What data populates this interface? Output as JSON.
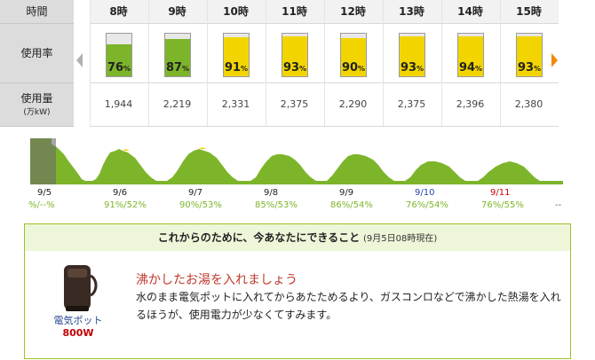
{
  "rows": {
    "time": "時間",
    "usage_rate": "使用率",
    "usage_amount": "使用量",
    "unit": "(万kW)"
  },
  "hours": [
    {
      "label": "8時",
      "rate": 76,
      "amount": "1,944",
      "color": "#7db52a",
      "cap": "#b5b5b5"
    },
    {
      "label": "9時",
      "rate": 87,
      "amount": "2,219",
      "color": "#7db52a",
      "cap": "#ffffff"
    },
    {
      "label": "10時",
      "rate": 91,
      "amount": "2,331",
      "color": "#f2d500",
      "cap": "#ffffff"
    },
    {
      "label": "11時",
      "rate": 93,
      "amount": "2,375",
      "color": "#f2d500",
      "cap": "#ffffff"
    },
    {
      "label": "12時",
      "rate": 90,
      "amount": "2,290",
      "color": "#f2d500",
      "cap": "#ffffff"
    },
    {
      "label": "13時",
      "rate": 93,
      "amount": "2,375",
      "color": "#f2d500",
      "cap": "#ffffff"
    },
    {
      "label": "14時",
      "rate": 94,
      "amount": "2,396",
      "color": "#f2d500",
      "cap": "#ffffff"
    },
    {
      "label": "15時",
      "rate": 93,
      "amount": "2,380",
      "color": "#f2d500",
      "cap": "#ffffff"
    }
  ],
  "pct_unit": "%",
  "days": [
    {
      "date": "9/5",
      "rates": "%/--%",
      "date_color": "#222222",
      "rate_color": "#7db52a"
    },
    {
      "date": "9/6",
      "rates": "91%/52%",
      "date_color": "#222222",
      "rate_color": "#7db52a"
    },
    {
      "date": "9/7",
      "rates": "90%/53%",
      "date_color": "#222222",
      "rate_color": "#7db52a"
    },
    {
      "date": "9/8",
      "rates": "85%/53%",
      "date_color": "#222222",
      "rate_color": "#7db52a"
    },
    {
      "date": "9/9",
      "rates": "86%/54%",
      "date_color": "#222222",
      "rate_color": "#7db52a"
    },
    {
      "date": "9/10",
      "rates": "76%/54%",
      "date_color": "#2244aa",
      "rate_color": "#7db52a"
    },
    {
      "date": "9/11",
      "rates": "76%/55%",
      "date_color": "#cc0000",
      "rate_color": "#7db52a"
    }
  ],
  "trailing_dash": "--",
  "tip": {
    "heading": "これからのために、今あなたにできること",
    "as_of": "(9月5日08時現在)",
    "title": "沸かしたお湯を入れましょう",
    "body": "水のまま電気ポットに入れてからあたためるより、ガスコンロなどで沸かした熱湯を入れるほうが、使用電力が少なくてすみます。",
    "product_name": "電気ポット",
    "product_watt": "800W"
  },
  "colors": {
    "green": "#7db52a",
    "yellow": "#f2d500",
    "accent": "#f08a00"
  }
}
